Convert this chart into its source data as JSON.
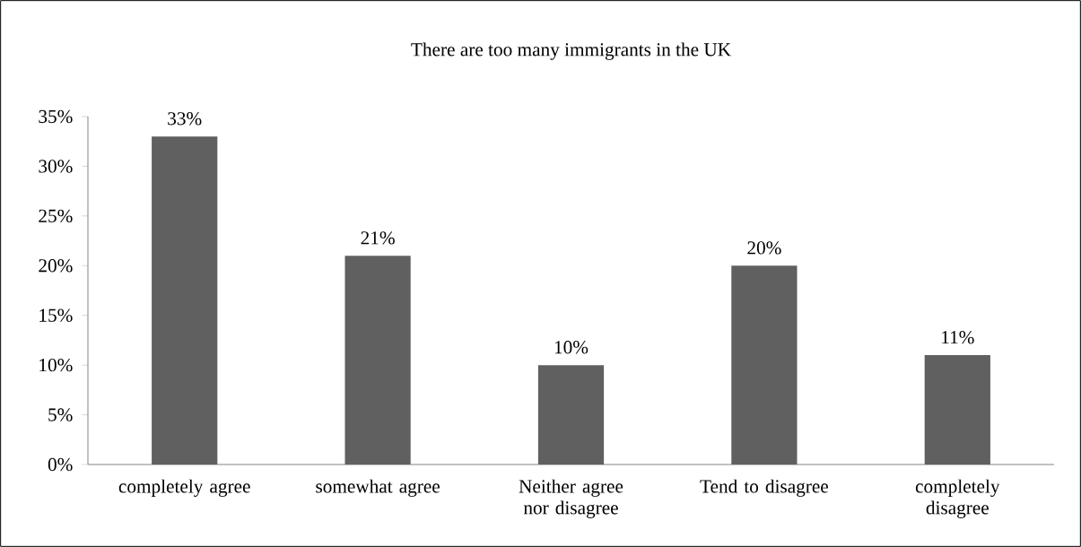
{
  "chart_data": {
    "type": "bar",
    "title": "There are too many immigrants in the UK",
    "categories": [
      "completely agree",
      "somewhat agree",
      "Neither agree nor disagree",
      "Tend to disagree",
      "completely disagree"
    ],
    "values": [
      33,
      21,
      10,
      20,
      11
    ],
    "value_labels": [
      "33%",
      "21%",
      "10%",
      "20%",
      "11%"
    ],
    "color": "#606060",
    "ylim": [
      0,
      35
    ],
    "yticks": [
      {
        "value": 0,
        "label": "0%"
      },
      {
        "value": 5,
        "label": "5%"
      },
      {
        "value": 10,
        "label": "10%"
      },
      {
        "value": 15,
        "label": "15%"
      },
      {
        "value": 20,
        "label": "20%"
      },
      {
        "value": 25,
        "label": "25%"
      },
      {
        "value": 30,
        "label": "30%"
      },
      {
        "value": 35,
        "label": "35%"
      }
    ],
    "grid": false
  }
}
